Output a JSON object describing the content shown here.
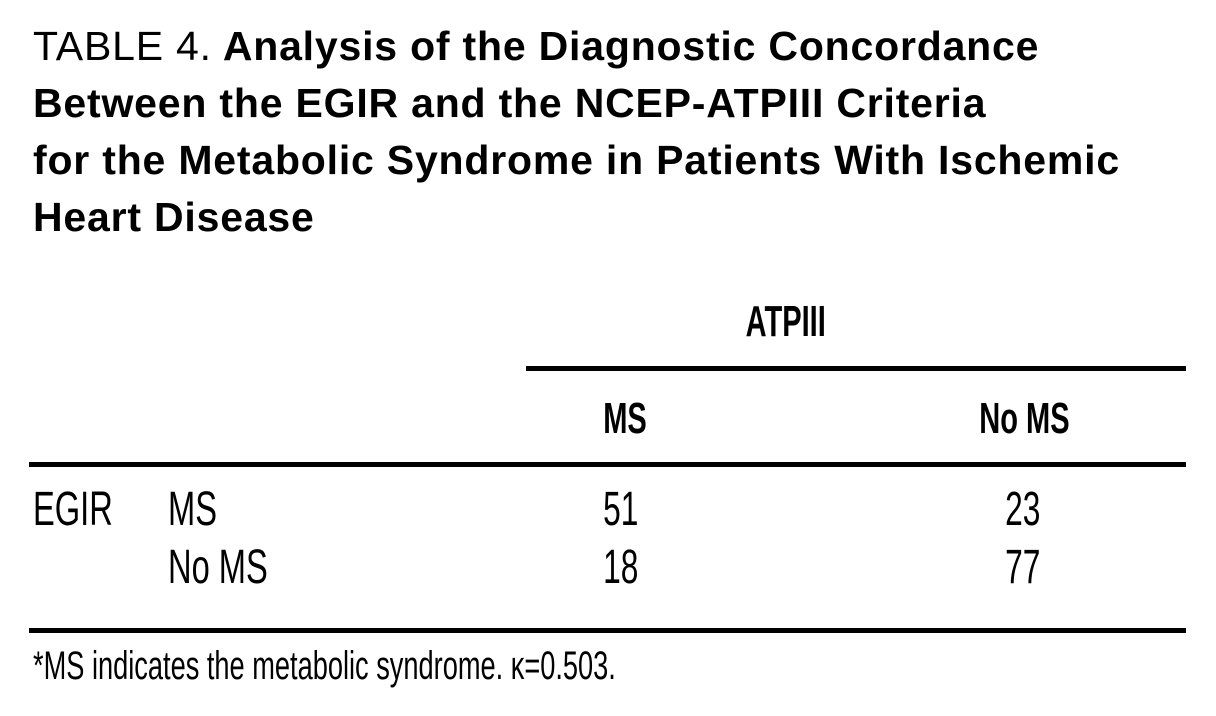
{
  "table": {
    "label": "TABLE 4.",
    "title_lines": [
      "Analysis of the Diagnostic Concordance",
      "Between the EGIR and the NCEP-ATPIII Criteria",
      "for the Metabolic Syndrome in Patients With Ischemic",
      "Heart Disease"
    ],
    "col_group_header": "ATPIII",
    "row_group_header": "EGIR",
    "col_headers": [
      "MS",
      "No MS"
    ],
    "rows": [
      {
        "label": "MS",
        "values": [
          "51",
          "23"
        ]
      },
      {
        "label": "No MS",
        "values": [
          "18",
          "77"
        ]
      }
    ],
    "footnote": "*MS indicates the metabolic syndrome. κ=0.503."
  },
  "chart_data": {
    "type": "table",
    "title": "TABLE 4. Analysis of the Diagnostic Concordance Between the EGIR and the NCEP-ATPIII Criteria for the Metabolic Syndrome in Patients With Ischemic Heart Disease",
    "column_group": "ATPIII",
    "row_group": "EGIR",
    "columns": [
      "MS",
      "No MS"
    ],
    "rows": [
      "MS",
      "No MS"
    ],
    "values": [
      [
        51,
        23
      ],
      [
        18,
        77
      ]
    ],
    "kappa": 0.503,
    "footnote": "*MS indicates the metabolic syndrome. κ=0.503."
  },
  "colors": {
    "text": "#000000",
    "background": "#ffffff",
    "rule": "#000000"
  }
}
